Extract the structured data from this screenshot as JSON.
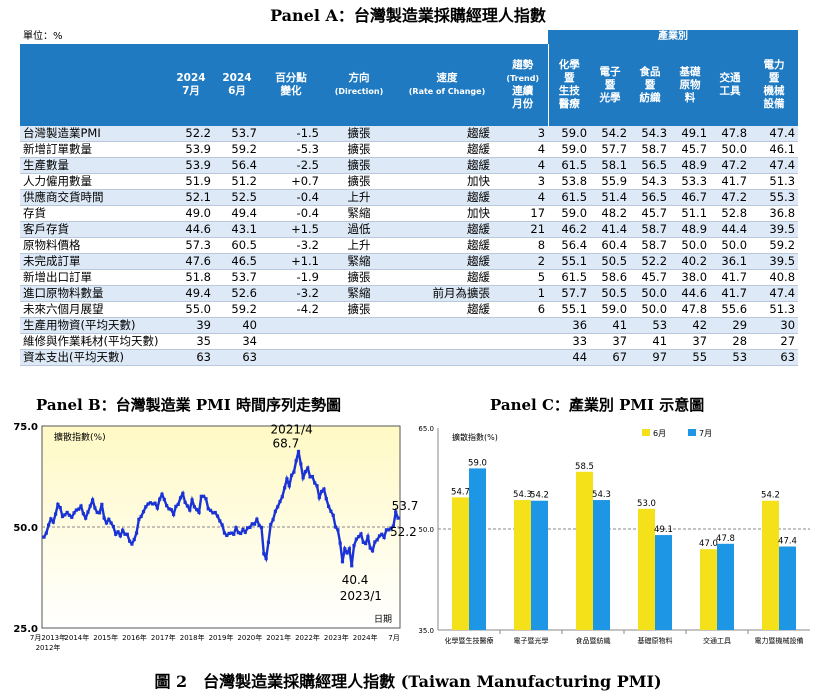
{
  "panel_a": {
    "title": "Panel A：台灣製造業採購經理人指數",
    "unit": "單位：%",
    "industry_group": "產業別",
    "headers": {
      "jul": [
        "2024",
        "7月"
      ],
      "jun": [
        "2024",
        "6月"
      ],
      "pp": [
        "百分點",
        "變化"
      ],
      "dir": [
        "方向",
        "(Direction)"
      ],
      "rate": [
        "速度",
        "(Rate of Change)"
      ],
      "trend": [
        "趨勢",
        "(Trend)",
        "連續",
        "月份"
      ],
      "ind1": [
        "化學",
        "暨",
        "生技",
        "醫療"
      ],
      "ind2": [
        "電子",
        "暨",
        "光學"
      ],
      "ind3": [
        "食品",
        "暨",
        "紡織"
      ],
      "ind4": [
        "基礎",
        "原物",
        "料"
      ],
      "ind5": [
        "交通",
        "工具"
      ],
      "ind6": [
        "電力",
        "暨",
        "機械",
        "設備"
      ]
    },
    "rows": [
      {
        "label": "台灣製造業PMI",
        "jul": "52.2",
        "jun": "53.7",
        "chg": "-1.5",
        "dir": "擴張",
        "rate": "趨緩",
        "trend": "3",
        "i1": "59.0",
        "i2": "54.2",
        "i3": "54.3",
        "i4": "49.1",
        "i5": "47.8",
        "i6": "47.4"
      },
      {
        "label": "新增訂單數量",
        "jul": "53.9",
        "jun": "59.2",
        "chg": "-5.3",
        "dir": "擴張",
        "rate": "趨緩",
        "trend": "4",
        "i1": "59.0",
        "i2": "57.7",
        "i3": "58.7",
        "i4": "45.7",
        "i5": "50.0",
        "i6": "46.1"
      },
      {
        "label": "生產數量",
        "jul": "53.9",
        "jun": "56.4",
        "chg": "-2.5",
        "dir": "擴張",
        "rate": "趨緩",
        "trend": "4",
        "i1": "61.5",
        "i2": "58.1",
        "i3": "56.5",
        "i4": "48.9",
        "i5": "47.2",
        "i6": "47.4"
      },
      {
        "label": "人力僱用數量",
        "jul": "51.9",
        "jun": "51.2",
        "chg": "+0.7",
        "dir": "擴張",
        "rate": "加快",
        "trend": "3",
        "i1": "53.8",
        "i2": "55.9",
        "i3": "54.3",
        "i4": "53.3",
        "i5": "41.7",
        "i6": "51.3"
      },
      {
        "label": "供應商交貨時間",
        "jul": "52.1",
        "jun": "52.5",
        "chg": "-0.4",
        "dir": "上升",
        "rate": "趨緩",
        "trend": "4",
        "i1": "61.5",
        "i2": "51.4",
        "i3": "56.5",
        "i4": "46.7",
        "i5": "47.2",
        "i6": "55.3"
      },
      {
        "label": "存貨",
        "jul": "49.0",
        "jun": "49.4",
        "chg": "-0.4",
        "dir": "緊縮",
        "rate": "加快",
        "trend": "17",
        "i1": "59.0",
        "i2": "48.2",
        "i3": "45.7",
        "i4": "51.1",
        "i5": "52.8",
        "i6": "36.8"
      },
      {
        "label": "客戶存貨",
        "jul": "44.6",
        "jun": "43.1",
        "chg": "+1.5",
        "dir": "過低",
        "rate": "趨緩",
        "trend": "21",
        "i1": "46.2",
        "i2": "41.4",
        "i3": "58.7",
        "i4": "48.9",
        "i5": "44.4",
        "i6": "39.5"
      },
      {
        "label": "原物料價格",
        "jul": "57.3",
        "jun": "60.5",
        "chg": "-3.2",
        "dir": "上升",
        "rate": "趨緩",
        "trend": "8",
        "i1": "56.4",
        "i2": "60.4",
        "i3": "58.7",
        "i4": "50.0",
        "i5": "50.0",
        "i6": "59.2"
      },
      {
        "label": "未完成訂單",
        "jul": "47.6",
        "jun": "46.5",
        "chg": "+1.1",
        "dir": "緊縮",
        "rate": "趨緩",
        "trend": "2",
        "i1": "55.1",
        "i2": "50.5",
        "i3": "52.2",
        "i4": "40.2",
        "i5": "36.1",
        "i6": "39.5"
      },
      {
        "label": "新增出口訂單",
        "jul": "51.8",
        "jun": "53.7",
        "chg": "-1.9",
        "dir": "擴張",
        "rate": "趨緩",
        "trend": "5",
        "i1": "61.5",
        "i2": "58.6",
        "i3": "45.7",
        "i4": "38.0",
        "i5": "41.7",
        "i6": "40.8"
      },
      {
        "label": "進口原物料數量",
        "jul": "49.4",
        "jun": "52.6",
        "chg": "-3.2",
        "dir": "緊縮",
        "rate": "前月為擴張",
        "trend": "1",
        "i1": "57.7",
        "i2": "50.5",
        "i3": "50.0",
        "i4": "44.6",
        "i5": "41.7",
        "i6": "47.4"
      },
      {
        "label": "未來六個月展望",
        "jul": "55.0",
        "jun": "59.2",
        "chg": "-4.2",
        "dir": "擴張",
        "rate": "趨緩",
        "trend": "6",
        "i1": "55.1",
        "i2": "59.0",
        "i3": "50.0",
        "i4": "47.8",
        "i5": "55.6",
        "i6": "51.3"
      },
      {
        "label": "生產用物資(平均天數)",
        "jul": "39",
        "jun": "40",
        "chg": "",
        "dir": "",
        "rate": "",
        "trend": "",
        "i1": "36",
        "i2": "41",
        "i3": "53",
        "i4": "42",
        "i5": "29",
        "i6": "30"
      },
      {
        "label": "維修與作業耗材(平均天數)",
        "jul": "35",
        "jun": "34",
        "chg": "",
        "dir": "",
        "rate": "",
        "trend": "",
        "i1": "33",
        "i2": "37",
        "i3": "41",
        "i4": "37",
        "i5": "28",
        "i6": "27"
      },
      {
        "label": "資本支出(平均天數)",
        "jul": "63",
        "jun": "63",
        "chg": "",
        "dir": "",
        "rate": "",
        "trend": "",
        "i1": "44",
        "i2": "67",
        "i3": "97",
        "i4": "55",
        "i5": "53",
        "i6": "63"
      }
    ]
  },
  "panel_b": {
    "title": "Panel B：台灣製造業 PMI 時間序列走勢圖"
  },
  "panel_c": {
    "title": "Panel C：產業別 PMI 示意圖"
  },
  "footer": "圖 2　台灣製造業採購經理人指數 (Taiwan Manufacturing PMI)",
  "chart_data": [
    {
      "type": "line",
      "ylabel": "擴散指數(%)",
      "xlabel": "日期",
      "ylim": [
        25.0,
        75.0
      ],
      "ytick_labels": [
        "75.0",
        "50.0",
        "25.0"
      ],
      "x_start": "2012-07",
      "x_end": "2024-07",
      "xtick_labels": [
        "7月2013年",
        "2014年",
        "2015年",
        "2016年",
        "2017年",
        "2018年",
        "2019年",
        "2020年",
        "2021年",
        "2022年",
        "2023年",
        "2024年",
        "7月"
      ],
      "x_first_label_year": "2012年",
      "reference_line": 50.0,
      "background_gradient": [
        "#fff9c4",
        "#ffffff"
      ],
      "line_color": "#1a33d6",
      "series": [
        {
          "values": [
            47.5,
            48.5,
            50.5,
            52.0,
            51.2,
            53.2,
            55.6,
            54.8,
            52.6,
            53.0,
            53.6,
            52.9,
            52.4,
            53.5,
            54.2,
            54.4,
            55.2,
            53.3,
            52.2,
            53.7,
            55.2,
            56.7,
            54.7,
            53.6,
            53.5,
            55.6,
            52.2,
            51.0,
            51.9,
            51.0,
            50.1,
            48.2,
            48.8,
            47.8,
            49.2,
            48.2,
            48.2,
            46.5,
            45.8,
            46.9,
            48.5,
            51.9,
            52.6,
            53.8,
            55.0,
            55.7,
            56.0,
            55.7,
            55.9,
            54.7,
            56.9,
            58.1,
            56.8,
            55.3,
            54.5,
            54.3,
            53.1,
            55.1,
            55.6,
            57.2,
            58.3,
            56.1,
            55.2,
            54.2,
            56.7,
            55.0,
            54.3,
            53.6,
            57.6,
            57.6,
            57.0,
            54.5,
            54.1,
            53.5,
            53.6,
            52.7,
            51.5,
            50.5,
            48.5,
            47.9,
            48.4,
            48.5,
            48.2,
            49.8,
            48.6,
            48.4,
            49.4,
            48.7,
            49.8,
            49.9,
            50.8,
            50.7,
            51.9,
            50.4,
            49.9,
            43.4,
            42.2,
            46.2,
            50.6,
            51.8,
            53.9,
            55.0,
            56.3,
            57.5,
            59.7,
            61.9,
            60.2,
            62.8,
            63.6,
            66.4,
            68.7,
            65.6,
            62.2,
            63.7,
            64.6,
            62.4,
            62.5,
            60.9,
            60.2,
            57.3,
            58.8,
            59.4,
            57.0,
            55.1,
            53.9,
            52.9,
            50.0,
            49.3,
            46.0,
            41.4,
            44.6,
            43.6,
            44.6,
            40.4,
            45.4,
            47.0,
            47.6,
            48.3,
            46.2,
            45.9,
            47.6,
            44.8,
            44.1,
            46.3,
            46.8,
            47.8,
            48.2,
            47.4,
            49.3,
            49.3,
            49.7,
            50.2,
            53.7,
            52.2
          ]
        }
      ],
      "annotations": [
        {
          "text": "2021/4",
          "note": "peak"
        },
        {
          "text": "68.7",
          "note": "peak value"
        },
        {
          "text": "40.4",
          "note": "trough value"
        },
        {
          "text": "2023/1",
          "note": "trough"
        },
        {
          "text": "53.7",
          "note": "June 2024"
        },
        {
          "text": "52.2",
          "note": "July 2024"
        }
      ]
    },
    {
      "type": "bar",
      "ylabel": "擴散指數(%)",
      "ylim": [
        35.0,
        65.0
      ],
      "ytick_labels": [
        "65.0",
        "50.0",
        "35.0"
      ],
      "reference_line": 50.0,
      "categories": [
        "化學暨生技醫療",
        "電子暨光學",
        "食品暨紡織",
        "基礎原物料",
        "交通工具",
        "電力暨機械設備"
      ],
      "series": [
        {
          "name": "6月",
          "color": "#f5e11a",
          "values": [
            54.7,
            54.3,
            58.5,
            53.0,
            47.0,
            54.2
          ],
          "labels": [
            "54.7",
            "54.3",
            "58.5",
            "53.0",
            "47.0",
            "54.2"
          ]
        },
        {
          "name": "7月",
          "color": "#1e96e6",
          "values": [
            59.0,
            54.2,
            54.3,
            49.1,
            47.8,
            47.4
          ],
          "labels": [
            "59.0",
            "54.2",
            "54.3",
            "49.1",
            "47.8",
            "47.4"
          ]
        }
      ]
    }
  ]
}
